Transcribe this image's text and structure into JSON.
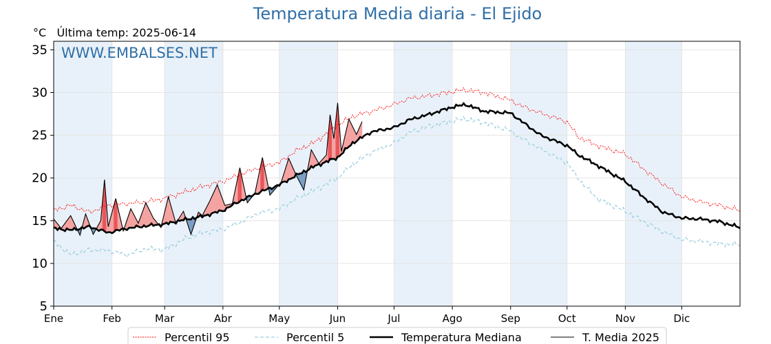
{
  "chart_data": {
    "type": "line",
    "title": "Temperatura Media diaria - El Ejido",
    "unit_label": "°C",
    "last_temp_label": "Última temp: 2025-06-14",
    "watermark": "WWW.EMBALSES.NET",
    "ylim": [
      5,
      36
    ],
    "yticks": [
      5,
      10,
      15,
      20,
      25,
      30,
      35
    ],
    "xlim": [
      1,
      366
    ],
    "month_labels": [
      "Ene",
      "Feb",
      "Mar",
      "Abr",
      "May",
      "Jun",
      "Jul",
      "Ago",
      "Sep",
      "Oct",
      "Nov",
      "Dic"
    ],
    "month_start_days": [
      1,
      32,
      60,
      91,
      121,
      152,
      182,
      213,
      244,
      274,
      305,
      335
    ],
    "shaded_months": [
      "Ene",
      "Mar",
      "May",
      "Jul",
      "Sep",
      "Nov"
    ],
    "grid": true,
    "legend_position": "bottom",
    "colors": {
      "p95": "#ff0000",
      "p5": "#9fd0e0",
      "median": "#000000",
      "current": "#000000",
      "above_fill": "#f4a3a3",
      "above_strong": "#e8575a",
      "below_fill": "#7b9fc4",
      "band": "#e8f1f9"
    },
    "series": [
      {
        "name": "Percentil 95",
        "style": "dotted-red",
        "x": [
          1,
          10,
          20,
          30,
          40,
          50,
          60,
          70,
          80,
          91,
          100,
          110,
          121,
          130,
          140,
          152,
          160,
          170,
          182,
          190,
          200,
          213,
          220,
          230,
          244,
          250,
          260,
          274,
          280,
          290,
          305,
          315,
          325,
          335,
          345,
          355,
          366
        ],
        "values": [
          16.2,
          16.8,
          16.0,
          16.8,
          17.0,
          17.2,
          17.6,
          18.3,
          19.0,
          19.6,
          20.4,
          21.2,
          21.8,
          23.2,
          24.2,
          26.2,
          27.2,
          27.8,
          28.6,
          29.3,
          29.6,
          30.1,
          30.3,
          30.0,
          29.1,
          28.4,
          27.6,
          26.6,
          24.8,
          23.8,
          22.8,
          21.0,
          19.3,
          17.8,
          17.2,
          16.8,
          16.2
        ]
      },
      {
        "name": "Percentil 5",
        "style": "dashed-lightblue",
        "x": [
          1,
          10,
          20,
          30,
          40,
          50,
          60,
          70,
          80,
          91,
          100,
          110,
          121,
          130,
          140,
          152,
          160,
          170,
          182,
          190,
          200,
          213,
          220,
          230,
          244,
          250,
          260,
          274,
          280,
          290,
          305,
          315,
          325,
          335,
          345,
          355,
          366
        ],
        "values": [
          12.6,
          11.0,
          11.6,
          11.5,
          11.0,
          11.7,
          11.6,
          12.8,
          13.6,
          14.0,
          14.8,
          15.9,
          16.4,
          17.6,
          18.6,
          20.0,
          21.6,
          23.0,
          24.1,
          25.3,
          26.0,
          26.7,
          26.9,
          26.5,
          25.5,
          24.6,
          23.4,
          21.8,
          19.9,
          17.6,
          16.1,
          14.9,
          13.7,
          12.8,
          12.6,
          12.3,
          12.2
        ]
      },
      {
        "name": "Temperatura Mediana",
        "style": "thick-black",
        "x": [
          1,
          10,
          20,
          30,
          40,
          50,
          60,
          70,
          80,
          91,
          100,
          110,
          121,
          130,
          140,
          152,
          160,
          170,
          182,
          190,
          200,
          213,
          220,
          230,
          244,
          250,
          260,
          274,
          280,
          290,
          305,
          315,
          325,
          335,
          345,
          355,
          366
        ],
        "values": [
          14.1,
          13.9,
          14.3,
          13.6,
          14.1,
          14.4,
          14.6,
          15.1,
          15.5,
          16.2,
          17.3,
          18.3,
          19.2,
          20.3,
          21.4,
          22.4,
          24.1,
          25.4,
          25.9,
          26.8,
          27.4,
          28.3,
          28.6,
          27.8,
          27.6,
          26.6,
          25.0,
          23.8,
          22.7,
          21.5,
          19.6,
          17.7,
          16.0,
          15.3,
          15.2,
          14.9,
          14.2
        ]
      },
      {
        "name": "T. Media 2025",
        "style": "thin-black",
        "x": [
          1,
          5,
          10,
          15,
          18,
          22,
          26,
          28,
          30,
          34,
          38,
          42,
          46,
          50,
          54,
          58,
          62,
          66,
          70,
          74,
          78,
          80,
          84,
          88,
          92,
          96,
          100,
          104,
          108,
          112,
          116,
          118,
          122,
          126,
          130,
          134,
          138,
          142,
          146,
          148,
          150,
          152,
          154,
          158,
          162,
          165
        ],
        "values": [
          15.2,
          14.1,
          15.6,
          13.3,
          15.8,
          13.4,
          15.0,
          19.8,
          14.3,
          17.6,
          13.8,
          16.4,
          14.7,
          17.1,
          15.3,
          14.2,
          17.8,
          14.7,
          16.1,
          13.4,
          16.0,
          15.6,
          17.3,
          19.2,
          16.8,
          17.0,
          21.2,
          17.1,
          18.2,
          22.4,
          18.0,
          18.5,
          19.5,
          22.3,
          20.3,
          18.6,
          23.3,
          21.7,
          22.7,
          27.4,
          24.6,
          28.8,
          23.1,
          26.9,
          25.1,
          26.6
        ]
      }
    ]
  }
}
